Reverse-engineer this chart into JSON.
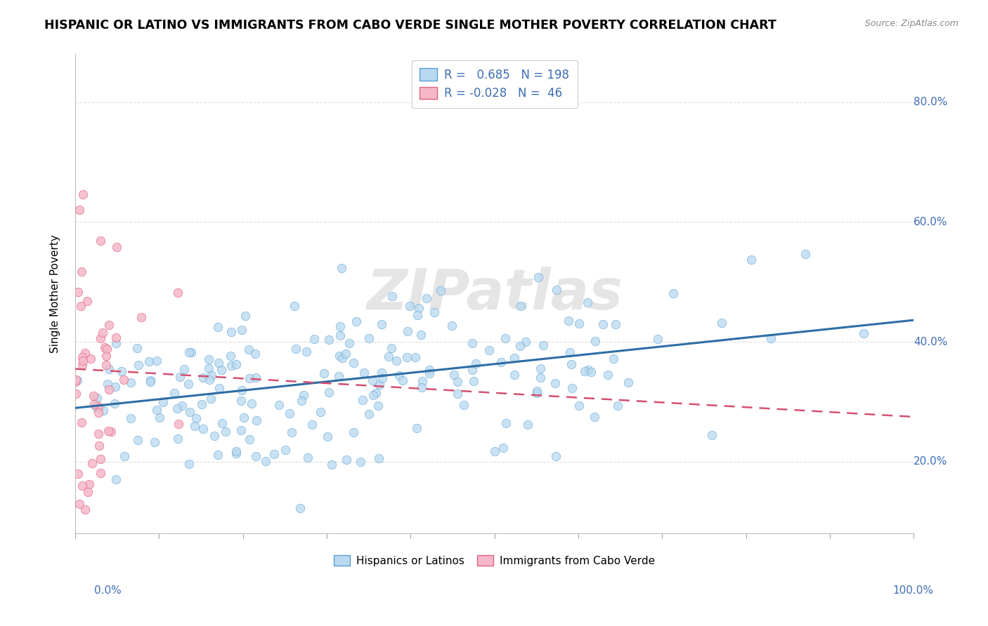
{
  "title": "HISPANIC OR LATINO VS IMMIGRANTS FROM CABO VERDE SINGLE MOTHER POVERTY CORRELATION CHART",
  "source": "Source: ZipAtlas.com",
  "ylabel": "Single Mother Poverty",
  "y_ticks": [
    0.2,
    0.4,
    0.6,
    0.8
  ],
  "y_tick_labels": [
    "20.0%",
    "40.0%",
    "60.0%",
    "80.0%"
  ],
  "xlim": [
    0.0,
    1.0
  ],
  "ylim": [
    0.08,
    0.88
  ],
  "series": [
    {
      "name": "Hispanics or Latinos",
      "R": 0.685,
      "N": 198,
      "color": "#b8d9f0",
      "edge_color": "#5a9fd4",
      "line_color": "#2e6da4",
      "line_style": "solid"
    },
    {
      "name": "Immigrants from Cabo Verde",
      "R": -0.028,
      "N": 46,
      "color": "#f5b8c8",
      "edge_color": "#e06080",
      "line_color": "#d45070",
      "line_style": "dashed"
    }
  ],
  "watermark": "ZIPatlas",
  "background_color": "#ffffff",
  "grid_color": "#dedede",
  "title_fontsize": 12.5,
  "axis_label_color": "#3d6db5",
  "legend_color": "#3d6db5",
  "trend_blue_start": 0.285,
  "trend_blue_end": 0.445,
  "trend_pink_start": 0.355,
  "trend_pink_end": 0.275
}
